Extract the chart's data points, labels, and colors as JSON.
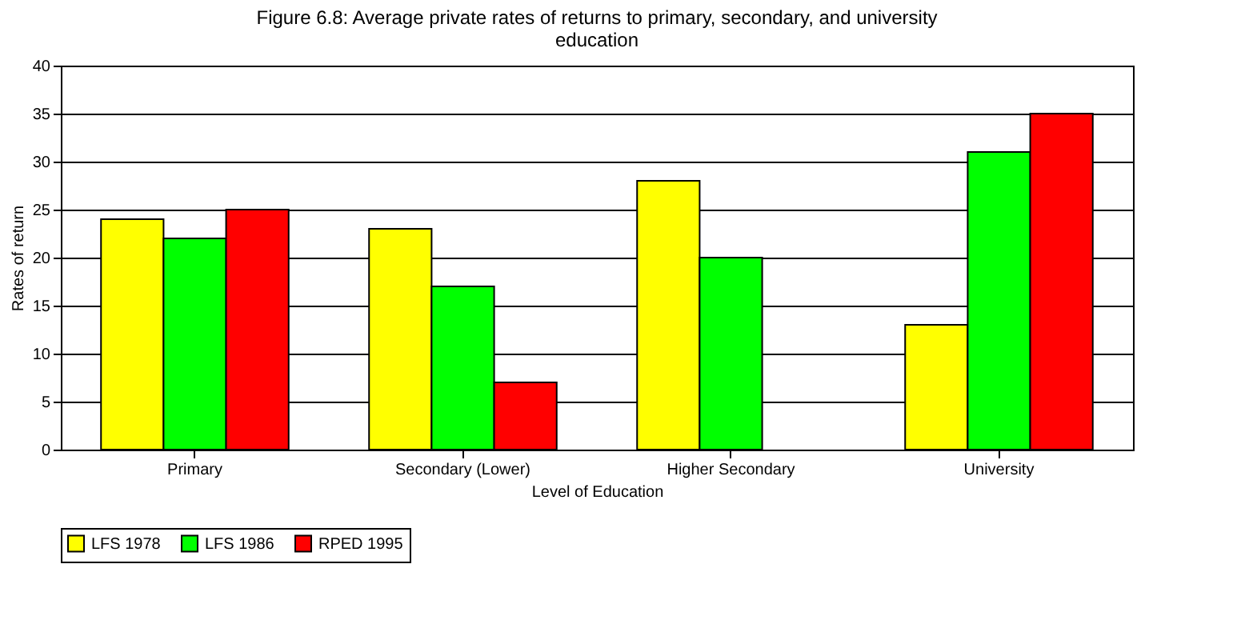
{
  "chart_data": {
    "type": "bar",
    "title": "Figure 6.8: Average private rates of returns to primary, secondary, and university education",
    "xlabel": "Level of Education",
    "ylabel": "Rates of return",
    "categories": [
      "Primary",
      "Secondary (Lower)",
      "Higher Secondary",
      "University"
    ],
    "series": [
      {
        "name": "LFS 1978",
        "color": "#ffff00",
        "values": [
          24,
          23,
          28,
          13
        ]
      },
      {
        "name": "LFS 1986",
        "color": "#00ff00",
        "values": [
          22,
          17,
          20,
          31
        ]
      },
      {
        "name": "RPED 1995",
        "color": "#ff0000",
        "values": [
          25,
          7,
          null,
          35
        ]
      }
    ],
    "ylim": [
      0,
      40
    ],
    "yticks": [
      0,
      5,
      10,
      15,
      20,
      25,
      30,
      35,
      40
    ],
    "grid": "y",
    "legend": "bottom"
  }
}
